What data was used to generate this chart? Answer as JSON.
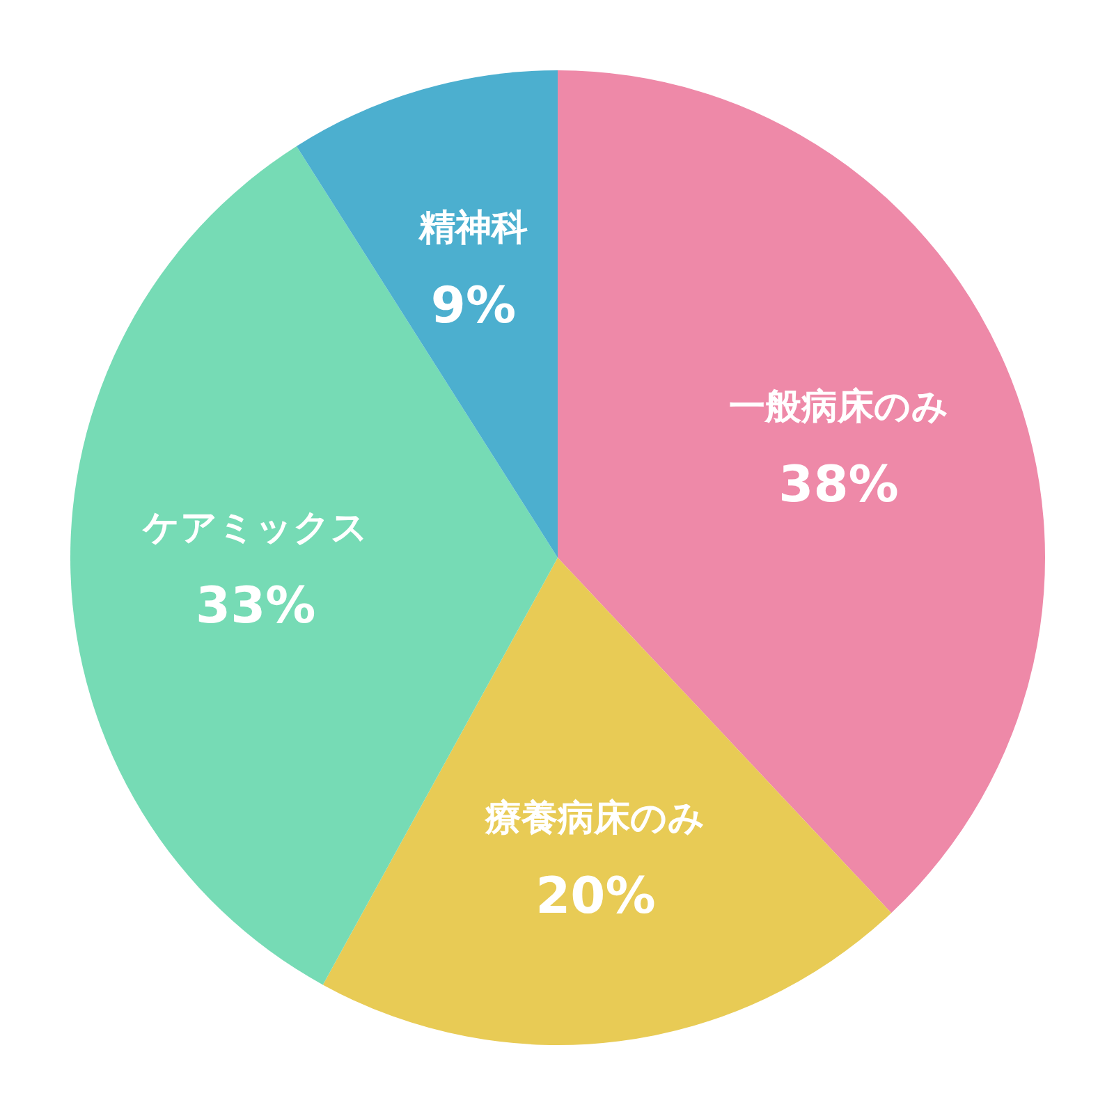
{
  "chart_data": {
    "type": "pie",
    "categories": [
      "一般病床のみ",
      "療養病床のみ",
      "ケアミックス",
      "精神科"
    ],
    "values": [
      38,
      20,
      33,
      9
    ],
    "colors": [
      "#ee89a8",
      "#e8cb55",
      "#76dbb5",
      "#4cafcf"
    ],
    "value_labels": [
      "38%",
      "20%",
      "33%",
      "9%"
    ]
  }
}
